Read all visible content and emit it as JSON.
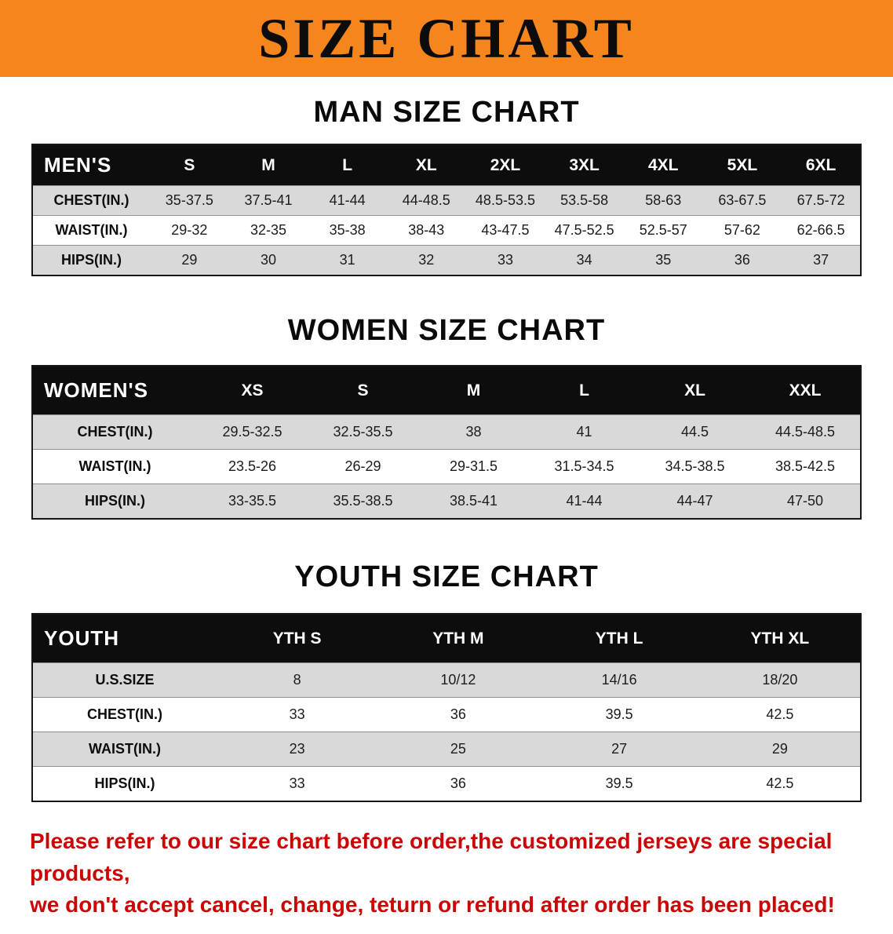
{
  "banner": {
    "title": "SIZE CHART",
    "bg_color": "#f5851d"
  },
  "sections": [
    {
      "heading": "MAN SIZE CHART",
      "table": {
        "header": [
          "MEN'S",
          "S",
          "M",
          "L",
          "XL",
          "2XL",
          "3XL",
          "4XL",
          "5XL",
          "6XL"
        ],
        "rows": [
          [
            "CHEST(IN.)",
            "35-37.5",
            "37.5-41",
            "41-44",
            "44-48.5",
            "48.5-53.5",
            "53.5-58",
            "58-63",
            "63-67.5",
            "67.5-72"
          ],
          [
            "WAIST(IN.)",
            "29-32",
            "32-35",
            "35-38",
            "38-43",
            "43-47.5",
            "47.5-52.5",
            "52.5-57",
            "57-62",
            "62-66.5"
          ],
          [
            "HIPS(IN.)",
            "29",
            "30",
            "31",
            "32",
            "33",
            "34",
            "35",
            "36",
            "37"
          ]
        ]
      }
    },
    {
      "heading": "WOMEN SIZE CHART",
      "table": {
        "header": [
          "WOMEN'S",
          "XS",
          "S",
          "M",
          "L",
          "XL",
          "XXL"
        ],
        "rows": [
          [
            "CHEST(IN.)",
            "29.5-32.5",
            "32.5-35.5",
            "38",
            "41",
            "44.5",
            "44.5-48.5"
          ],
          [
            "WAIST(IN.)",
            "23.5-26",
            "26-29",
            "29-31.5",
            "31.5-34.5",
            "34.5-38.5",
            "38.5-42.5"
          ],
          [
            "HIPS(IN.)",
            "33-35.5",
            "35.5-38.5",
            "38.5-41",
            "41-44",
            "44-47",
            "47-50"
          ]
        ]
      }
    },
    {
      "heading": "YOUTH SIZE CHART",
      "table": {
        "header": [
          "YOUTH",
          "YTH S",
          "YTH M",
          "YTH L",
          "YTH XL"
        ],
        "rows": [
          [
            "U.S.SIZE",
            "8",
            "10/12",
            "14/16",
            "18/20"
          ],
          [
            "CHEST(IN.)",
            "33",
            "36",
            "39.5",
            "42.5"
          ],
          [
            "WAIST(IN.)",
            "23",
            "25",
            "27",
            "29"
          ],
          [
            "HIPS(IN.)",
            "33",
            "36",
            "39.5",
            "42.5"
          ]
        ]
      }
    }
  ],
  "disclaimer": {
    "lines": [
      "Please refer to our size chart before order,the customized jerseys are special products,",
      "we don't accept cancel, change, teturn or refund after order has been placed!"
    ],
    "color": "#cb0606"
  }
}
